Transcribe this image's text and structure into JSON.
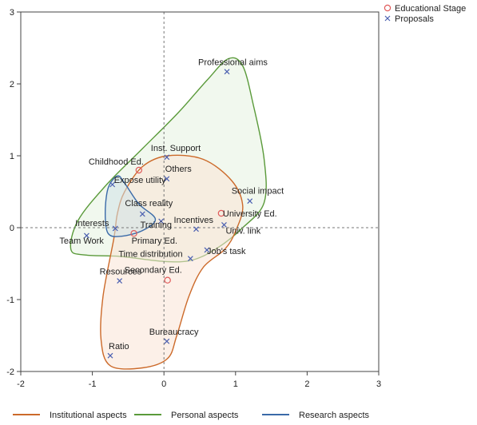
{
  "chart_data": {
    "type": "scatter",
    "xlim": [
      -2,
      3
    ],
    "ylim": [
      -2,
      3
    ],
    "x_ticks": [
      -2,
      -1,
      0,
      1,
      2,
      3
    ],
    "y_ticks": [
      -2,
      -1,
      0,
      1,
      2,
      3
    ],
    "reference_lines": {
      "x": 0,
      "y": 0,
      "style": "dashed"
    },
    "legend_placement": "top-right",
    "series": [
      {
        "name": "Educational Stage",
        "marker": "circle",
        "color": "#e05a5a",
        "points": [
          {
            "label": "Childhood Ed.",
            "x": -0.35,
            "y": 0.8
          },
          {
            "label": "Primary Ed.",
            "x": -0.42,
            "y": -0.08
          },
          {
            "label": "University Ed.",
            "x": 0.8,
            "y": 0.2
          },
          {
            "label": "Secondary Ed.",
            "x": 0.05,
            "y": -0.73
          }
        ]
      },
      {
        "name": "Proposals",
        "marker": "x",
        "color": "#4a5fb0",
        "points": [
          {
            "label": "Professional aims",
            "x": 0.88,
            "y": 2.17
          },
          {
            "label": "Inst. Support",
            "x": 0.04,
            "y": 0.98
          },
          {
            "label": "Others",
            "x": 0.04,
            "y": 0.68
          },
          {
            "label": "Expose utility",
            "x": -0.72,
            "y": 0.6
          },
          {
            "label": "Social impact",
            "x": 1.2,
            "y": 0.37
          },
          {
            "label": "Class reality",
            "x": -0.3,
            "y": 0.19
          },
          {
            "label": "Training",
            "x": -0.04,
            "y": 0.09
          },
          {
            "label": "Interests",
            "x": -0.68,
            "y": -0.01
          },
          {
            "label": "Incentives",
            "x": 0.45,
            "y": -0.02
          },
          {
            "label": "Univ. link",
            "x": 0.84,
            "y": 0.04
          },
          {
            "label": "Team Work",
            "x": -1.08,
            "y": -0.11
          },
          {
            "label": "Job's task",
            "x": 0.6,
            "y": -0.31
          },
          {
            "label": "Time distribution",
            "x": 0.37,
            "y": -0.43
          },
          {
            "label": "Resources",
            "x": -0.62,
            "y": -0.74
          },
          {
            "label": "Bureaucracy",
            "x": 0.04,
            "y": -1.58
          },
          {
            "label": "Ratio",
            "x": -0.75,
            "y": -1.78
          }
        ]
      }
    ],
    "groups": [
      {
        "name": "Personal aspects",
        "color": "#5a9a3a",
        "fill": "#e6f2e0",
        "outline": [
          [
            -1.3,
            -0.3
          ],
          [
            -1.2,
            0.1
          ],
          [
            -0.8,
            0.6
          ],
          [
            -0.3,
            1.1
          ],
          [
            0.2,
            1.6
          ],
          [
            0.6,
            2.05
          ],
          [
            0.9,
            2.35
          ],
          [
            1.1,
            2.25
          ],
          [
            1.25,
            1.7
          ],
          [
            1.4,
            0.95
          ],
          [
            1.4,
            0.35
          ],
          [
            1.1,
            0.0
          ],
          [
            0.75,
            -0.28
          ],
          [
            0.4,
            -0.45
          ],
          [
            0.0,
            -0.47
          ],
          [
            -0.6,
            -0.4
          ],
          [
            -1.1,
            -0.38
          ]
        ]
      },
      {
        "name": "Institutional aspects",
        "color": "#cc6a2a",
        "fill": "#f9e4d6",
        "outline": [
          [
            -0.55,
            0.5
          ],
          [
            -0.3,
            0.85
          ],
          [
            0.05,
            1.0
          ],
          [
            0.55,
            0.95
          ],
          [
            0.95,
            0.65
          ],
          [
            1.1,
            0.3
          ],
          [
            1.0,
            -0.05
          ],
          [
            0.85,
            -0.3
          ],
          [
            0.55,
            -0.55
          ],
          [
            0.35,
            -0.95
          ],
          [
            0.18,
            -1.5
          ],
          [
            0.05,
            -1.82
          ],
          [
            -0.3,
            -1.95
          ],
          [
            -0.75,
            -1.92
          ],
          [
            -0.88,
            -1.55
          ],
          [
            -0.85,
            -0.95
          ],
          [
            -0.7,
            -0.15
          ],
          [
            -0.65,
            0.2
          ]
        ]
      },
      {
        "name": "Research aspects",
        "color": "#3a6aa8",
        "fill": "#cfe1e8",
        "outline": [
          [
            -0.65,
            0.72
          ],
          [
            -0.55,
            0.62
          ],
          [
            -0.35,
            0.33
          ],
          [
            -0.12,
            0.12
          ],
          [
            -0.3,
            -0.04
          ],
          [
            -0.6,
            -0.12
          ],
          [
            -0.78,
            -0.08
          ],
          [
            -0.82,
            0.2
          ],
          [
            -0.78,
            0.55
          ]
        ]
      }
    ]
  }
}
